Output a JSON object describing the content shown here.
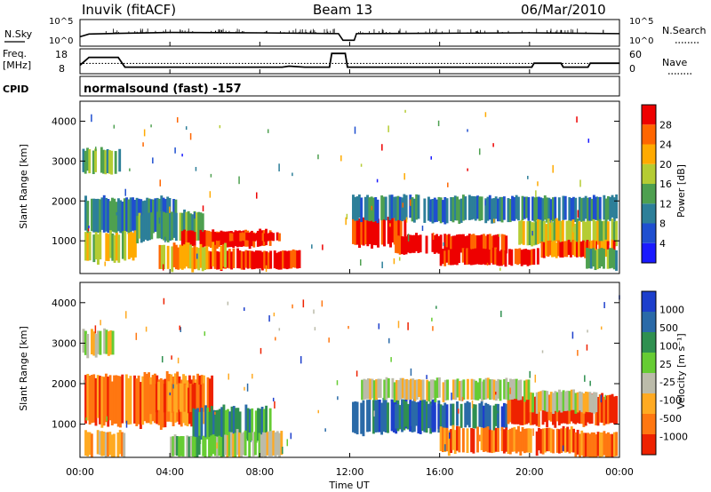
{
  "header": {
    "station": "Inuvik (fitACF)",
    "beam": "Beam 13",
    "date": "06/Mar/2010"
  },
  "noise_panel": {
    "left_label": "N.Sky",
    "right_label": "N.Search",
    "left_ticks": [
      "10^5",
      "10^0"
    ],
    "right_ticks": [
      "10^5",
      "10^0"
    ]
  },
  "freq_panel": {
    "left_label_line1": "Freq.",
    "left_label_line2": "[MHz]",
    "left_ticks": [
      "18",
      "8"
    ],
    "right_label": "Nave",
    "right_ticks": [
      "60",
      "0"
    ]
  },
  "cpid": {
    "label": "CPID",
    "value": "normalsound (fast) -157"
  },
  "x_axis": {
    "label": "Time UT",
    "ticks": [
      "00:00",
      "04:00",
      "08:00",
      "12:00",
      "16:00",
      "20:00",
      "00:00"
    ]
  },
  "power_panel": {
    "ylabel": "Slant Range [km]",
    "yticks": [
      "1000",
      "2000",
      "3000",
      "4000"
    ],
    "colorbar_label": "Power [dB]",
    "colorbar_ticks": [
      "4",
      "8",
      "12",
      "16",
      "20",
      "24",
      "28"
    ],
    "colors": [
      "#1a1aff",
      "#1f4fd0",
      "#2d7f99",
      "#4ea050",
      "#b5cc33",
      "#ffaa00",
      "#ff6600",
      "#ee0000"
    ]
  },
  "velocity_panel": {
    "ylabel": "Slant Range [km]",
    "yticks": [
      "1000",
      "2000",
      "3000",
      "4000"
    ],
    "colorbar_label": "Velocity [m s⁻¹]",
    "colorbar_ticks": [
      "1000",
      "500",
      "100",
      "25",
      "-25",
      "-100",
      "-500",
      "-1000"
    ],
    "colors": [
      "#1d3fcc",
      "#2a6aa8",
      "#2f9050",
      "#66cc33",
      "#bbbbaa",
      "#ffaa22",
      "#ff7711",
      "#ee2200"
    ]
  },
  "chart_data": {
    "type": "heatmap",
    "x_range_hours": [
      0,
      24
    ],
    "y_range_km": [
      180,
      4500
    ],
    "noise_sky": [
      {
        "t": 0.0,
        "v": 1.5
      },
      {
        "t": 0.4,
        "v": 2.2
      },
      {
        "t": 2.0,
        "v": 2.4
      },
      {
        "t": 4.0,
        "v": 2.6
      },
      {
        "t": 8.0,
        "v": 2.5
      },
      {
        "t": 10.0,
        "v": 2.4
      },
      {
        "t": 11.5,
        "v": 2.3
      },
      {
        "t": 11.7,
        "v": 0.6
      },
      {
        "t": 12.2,
        "v": 0.6
      },
      {
        "t": 12.3,
        "v": 2.3
      },
      {
        "t": 16.0,
        "v": 2.4
      },
      {
        "t": 20.0,
        "v": 2.5
      },
      {
        "t": 24.0,
        "v": 2.3
      }
    ],
    "frequency_mhz": [
      {
        "t": 0.0,
        "v": 11
      },
      {
        "t": 0.4,
        "v": 15
      },
      {
        "t": 1.7,
        "v": 15
      },
      {
        "t": 2.0,
        "v": 10
      },
      {
        "t": 9.0,
        "v": 10
      },
      {
        "t": 9.3,
        "v": 10.5
      },
      {
        "t": 10.0,
        "v": 10
      },
      {
        "t": 11.1,
        "v": 10
      },
      {
        "t": 11.2,
        "v": 17
      },
      {
        "t": 11.8,
        "v": 17
      },
      {
        "t": 11.9,
        "v": 10
      },
      {
        "t": 20.1,
        "v": 10
      },
      {
        "t": 20.2,
        "v": 12
      },
      {
        "t": 21.4,
        "v": 12
      },
      {
        "t": 21.5,
        "v": 10
      },
      {
        "t": 22.6,
        "v": 10
      },
      {
        "t": 22.7,
        "v": 12
      },
      {
        "t": 24.0,
        "v": 12
      }
    ],
    "nave": [
      {
        "t": 0.0,
        "v": 25
      },
      {
        "t": 24.0,
        "v": 25
      }
    ],
    "power_regions": [
      {
        "t0": 0.1,
        "t1": 1.8,
        "r0": 2700,
        "r1": 3300,
        "level": 3
      },
      {
        "t0": 0.2,
        "t1": 4.3,
        "r0": 1200,
        "r1": 2050,
        "level": 2
      },
      {
        "t0": 0.2,
        "t1": 2.5,
        "r0": 500,
        "r1": 1200,
        "level": 4
      },
      {
        "t0": 2.5,
        "t1": 5.5,
        "r0": 1000,
        "r1": 1700,
        "level": 3
      },
      {
        "t0": 4.5,
        "t1": 8.5,
        "r0": 850,
        "r1": 1250,
        "level": 7
      },
      {
        "t0": 6.0,
        "t1": 9.0,
        "r0": 1000,
        "r1": 1200,
        "level": 7
      },
      {
        "t0": 5.5,
        "t1": 9.8,
        "r0": 300,
        "r1": 750,
        "level": 7
      },
      {
        "t0": 3.5,
        "t1": 6.5,
        "r0": 300,
        "r1": 900,
        "level": 5
      },
      {
        "t0": 12.1,
        "t1": 14.5,
        "r0": 900,
        "r1": 1600,
        "level": 7
      },
      {
        "t0": 12.1,
        "t1": 23.9,
        "r0": 1500,
        "r1": 2100,
        "level": 2
      },
      {
        "t0": 14.0,
        "t1": 19.0,
        "r0": 700,
        "r1": 1150,
        "level": 7
      },
      {
        "t0": 16.0,
        "t1": 20.5,
        "r0": 400,
        "r1": 800,
        "level": 7
      },
      {
        "t0": 19.5,
        "t1": 23.9,
        "r0": 900,
        "r1": 1500,
        "level": 4
      },
      {
        "t0": 20.5,
        "t1": 23.8,
        "r0": 600,
        "r1": 1000,
        "level": 6
      },
      {
        "t0": 22.5,
        "t1": 23.9,
        "r0": 300,
        "r1": 800,
        "level": 3
      }
    ],
    "velocity_regions": [
      {
        "t0": 0.1,
        "t1": 1.5,
        "r0": 2700,
        "r1": 3300,
        "level": 4
      },
      {
        "t0": 0.2,
        "t1": 6.0,
        "r0": 1000,
        "r1": 2200,
        "level": 6
      },
      {
        "t0": 0.2,
        "t1": 2.0,
        "r0": 200,
        "r1": 800,
        "level": 5
      },
      {
        "t0": 3.0,
        "t1": 5.5,
        "r0": 1300,
        "r1": 2000,
        "level": 6
      },
      {
        "t0": 5.0,
        "t1": 8.5,
        "r0": 600,
        "r1": 1400,
        "level": 2
      },
      {
        "t0": 6.5,
        "t1": 9.0,
        "r0": 200,
        "r1": 800,
        "level": 4
      },
      {
        "t0": 4.0,
        "t1": 6.5,
        "r0": 200,
        "r1": 700,
        "level": 3
      },
      {
        "t0": 12.1,
        "t1": 16.0,
        "r0": 800,
        "r1": 1600,
        "level": 1
      },
      {
        "t0": 14.0,
        "t1": 19.0,
        "r0": 900,
        "r1": 1500,
        "level": 1
      },
      {
        "t0": 16.0,
        "t1": 22.0,
        "r0": 300,
        "r1": 900,
        "level": 6
      },
      {
        "t0": 19.0,
        "t1": 23.9,
        "r0": 1000,
        "r1": 1700,
        "level": 7
      },
      {
        "t0": 20.0,
        "t1": 23.0,
        "r0": 1300,
        "r1": 1800,
        "level": 4
      },
      {
        "t0": 12.5,
        "t1": 20.0,
        "r0": 1600,
        "r1": 2100,
        "level": 4
      },
      {
        "t0": 22.0,
        "t1": 23.9,
        "r0": 200,
        "r1": 800,
        "level": 6
      }
    ]
  }
}
